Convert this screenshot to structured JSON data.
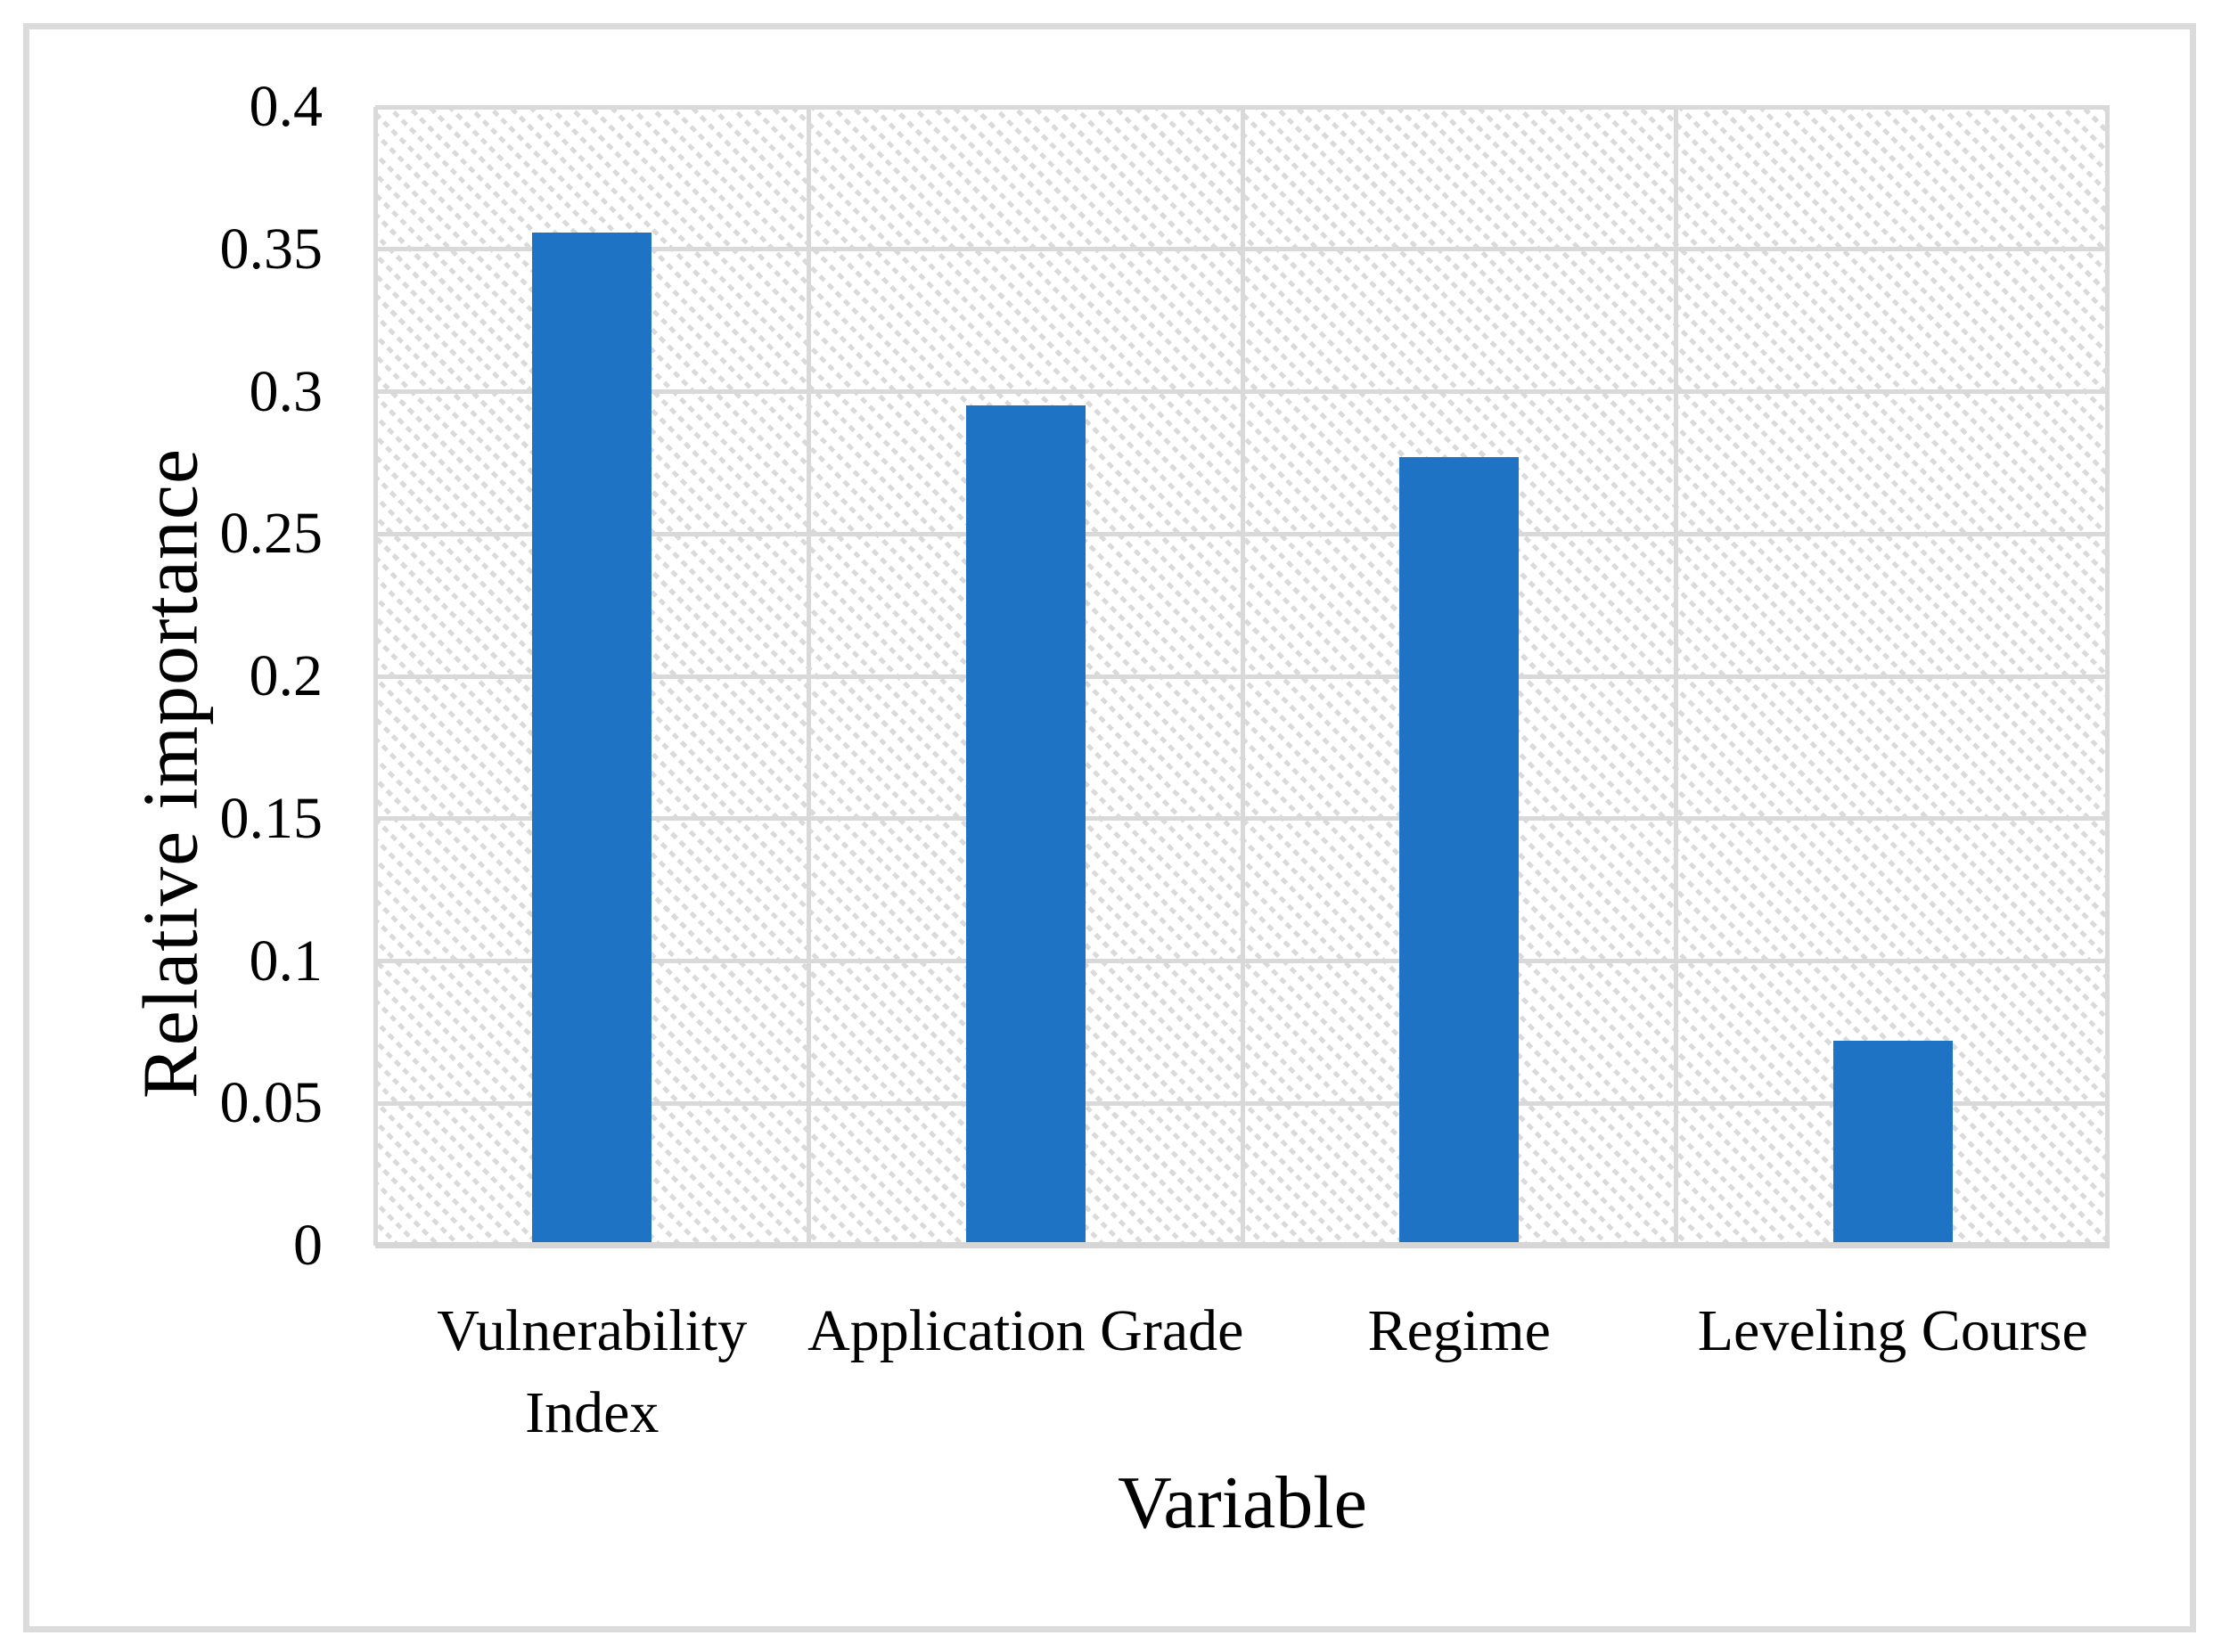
{
  "chart_data": {
    "type": "bar",
    "title": "",
    "categories": [
      "Vulnerability Index",
      "Application Grade",
      "Regime",
      "Leveling Course"
    ],
    "categories_lines": [
      [
        "Vulnerability",
        "Index"
      ],
      [
        "Application Grade"
      ],
      [
        "Regime"
      ],
      [
        "Leveling Course"
      ]
    ],
    "values": [
      0.356,
      0.295,
      0.277,
      0.072
    ],
    "xlabel": "Variable",
    "ylabel": "Relative importance",
    "ylim": [
      0,
      0.4
    ],
    "ytick_step": 0.05,
    "ytick_labels": [
      "0.4",
      "0.35",
      "0.3",
      "0.25",
      "0.2",
      "0.15",
      "0.1",
      "0.05",
      "0"
    ],
    "grid": {
      "horizontal": true,
      "vertical": true
    },
    "legend_position": "none",
    "plot_background": "light diagonal hatch pattern",
    "colors": {
      "bar": "#1e73c4",
      "gridline": "#d9d9d9",
      "hatch": "#dadada",
      "frame_border": "#dbdbdb",
      "text": "#000000"
    }
  }
}
